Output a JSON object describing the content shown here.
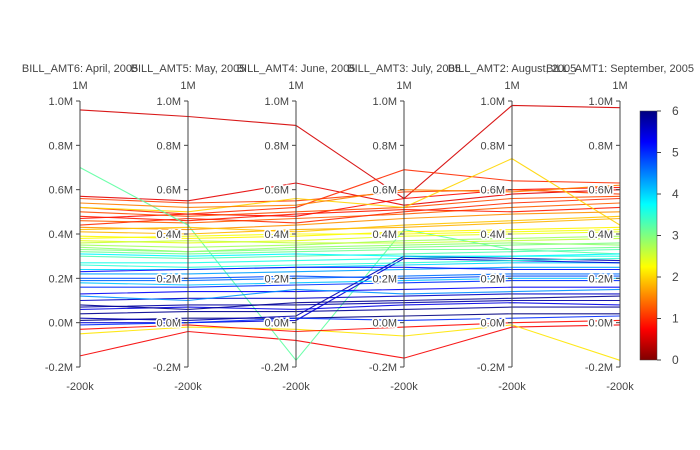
{
  "chart_data": {
    "type": "parallel-coordinates",
    "dimensions": [
      {
        "label": "BILL_AMT6: April, 2005",
        "range_top": "1M",
        "range_bottom": "-200k"
      },
      {
        "label": "BILL_AMT5: May, 2005",
        "range_top": "1M",
        "range_bottom": "-200k"
      },
      {
        "label": "BILL_AMT4: June, 2005",
        "range_top": "1M",
        "range_bottom": "-200k"
      },
      {
        "label": "BILL_AMT3: July, 2005",
        "range_top": "1M",
        "range_bottom": "-200k"
      },
      {
        "label": "BILL_AMT2: August, 2005",
        "range_top": "1M",
        "range_bottom": "-200k"
      },
      {
        "label": "BILL_AMT1: September, 2005",
        "range_top": "1M",
        "range_bottom": "-200k"
      }
    ],
    "yrange": [
      -200000,
      1000000
    ],
    "ticks": [
      {
        "value": 1000000,
        "label": "1.0M"
      },
      {
        "value": 800000,
        "label": "0.8M"
      },
      {
        "value": 600000,
        "label": "0.6M"
      },
      {
        "value": 400000,
        "label": "0.4M"
      },
      {
        "value": 200000,
        "label": "0.2M"
      },
      {
        "value": 0,
        "label": "0.0M"
      },
      {
        "value": -200000,
        "label": "-0.2M"
      }
    ],
    "colorscale": {
      "name": "Jet (reversed)",
      "range": [
        0,
        6
      ],
      "ticks": [
        "0",
        "1",
        "2",
        "3",
        "4",
        "5",
        "6"
      ],
      "stops": [
        "#800000",
        "#ff0000",
        "#ff8000",
        "#ffff00",
        "#80ff80",
        "#00ffff",
        "#0080ff",
        "#0000ff",
        "#000080"
      ]
    },
    "series": [
      {
        "color_value": 0.5,
        "values": [
          960000,
          930000,
          890000,
          560000,
          980000,
          970000
        ]
      },
      {
        "color_value": 0.6,
        "values": [
          570000,
          550000,
          630000,
          530000,
          580000,
          600000
        ]
      },
      {
        "color_value": 0.7,
        "values": [
          -150000,
          -40000,
          -80000,
          -160000,
          -20000,
          -10000
        ]
      },
      {
        "color_value": 0.8,
        "values": [
          470000,
          490000,
          480000,
          560000,
          600000,
          610000
        ]
      },
      {
        "color_value": 1.0,
        "values": [
          520000,
          490000,
          520000,
          690000,
          640000,
          630000
        ]
      },
      {
        "color_value": 1.1,
        "values": [
          560000,
          540000,
          550000,
          590000,
          600000,
          580000
        ]
      },
      {
        "color_value": 1.2,
        "values": [
          500000,
          480000,
          500000,
          520000,
          560000,
          570000
        ]
      },
      {
        "color_value": 1.3,
        "values": [
          460000,
          450000,
          470000,
          490000,
          520000,
          540000
        ]
      },
      {
        "color_value": 1.0,
        "values": [
          440000,
          470000,
          450000,
          500000,
          540000,
          560000
        ]
      },
      {
        "color_value": 0.9,
        "values": [
          480000,
          460000,
          490000,
          510000,
          500000,
          520000
        ]
      },
      {
        "color_value": 2.0,
        "values": [
          520000,
          500000,
          560000,
          520000,
          740000,
          440000
        ]
      },
      {
        "color_value": 2.1,
        "values": [
          -50000,
          -20000,
          -30000,
          -60000,
          -10000,
          -170000
        ]
      },
      {
        "color_value": 3.2,
        "values": [
          700000,
          440000,
          -170000,
          420000,
          330000,
          310000
        ]
      },
      {
        "color_value": 1.6,
        "values": [
          430000,
          420000,
          440000,
          470000,
          490000,
          500000
        ]
      },
      {
        "color_value": 1.8,
        "values": [
          410000,
          400000,
          420000,
          430000,
          450000,
          470000
        ]
      },
      {
        "color_value": 2.2,
        "values": [
          390000,
          380000,
          390000,
          410000,
          420000,
          430000
        ]
      },
      {
        "color_value": 2.4,
        "values": [
          370000,
          360000,
          370000,
          390000,
          400000,
          410000
        ]
      },
      {
        "color_value": 2.8,
        "values": [
          350000,
          340000,
          350000,
          370000,
          380000,
          390000
        ]
      },
      {
        "color_value": 3.0,
        "values": [
          330000,
          320000,
          330000,
          340000,
          350000,
          360000
        ]
      },
      {
        "color_value": 3.3,
        "values": [
          300000,
          290000,
          300000,
          310000,
          320000,
          330000
        ]
      },
      {
        "color_value": 3.6,
        "values": [
          270000,
          270000,
          280000,
          290000,
          300000,
          300000
        ]
      },
      {
        "color_value": 4.0,
        "values": [
          240000,
          240000,
          250000,
          260000,
          270000,
          270000
        ]
      },
      {
        "color_value": 4.3,
        "values": [
          220000,
          220000,
          230000,
          240000,
          250000,
          250000
        ]
      },
      {
        "color_value": 4.6,
        "values": [
          190000,
          190000,
          200000,
          210000,
          220000,
          220000
        ]
      },
      {
        "color_value": 5.0,
        "values": [
          160000,
          160000,
          170000,
          180000,
          190000,
          190000
        ]
      },
      {
        "color_value": 5.3,
        "values": [
          130000,
          140000,
          140000,
          150000,
          160000,
          160000
        ]
      },
      {
        "color_value": 5.6,
        "values": [
          100000,
          110000,
          110000,
          120000,
          130000,
          130000
        ]
      },
      {
        "color_value": 5.8,
        "values": [
          70000,
          80000,
          80000,
          90000,
          100000,
          100000
        ]
      },
      {
        "color_value": 5.9,
        "values": [
          40000,
          50000,
          50000,
          60000,
          70000,
          70000
        ]
      },
      {
        "color_value": 6.0,
        "values": [
          10000,
          20000,
          20000,
          30000,
          40000,
          40000
        ]
      },
      {
        "color_value": 5.7,
        "values": [
          20000,
          10000,
          30000,
          300000,
          290000,
          280000
        ]
      },
      {
        "color_value": 5.5,
        "values": [
          0,
          0,
          10000,
          290000,
          280000,
          270000
        ]
      },
      {
        "color_value": 5.2,
        "values": [
          230000,
          240000,
          250000,
          250000,
          240000,
          240000
        ]
      },
      {
        "color_value": 4.8,
        "values": [
          200000,
          200000,
          210000,
          200000,
          210000,
          210000
        ]
      },
      {
        "color_value": 3.8,
        "values": [
          310000,
          300000,
          310000,
          300000,
          300000,
          310000
        ]
      },
      {
        "color_value": 2.6,
        "values": [
          360000,
          370000,
          360000,
          360000,
          370000,
          380000
        ]
      },
      {
        "color_value": 5.0,
        "values": [
          -10000,
          0,
          20000,
          10000,
          20000,
          30000
        ]
      },
      {
        "color_value": 4.4,
        "values": [
          120000,
          100000,
          150000,
          130000,
          140000,
          150000
        ]
      },
      {
        "color_value": 3.5,
        "values": [
          260000,
          250000,
          260000,
          270000,
          280000,
          290000
        ]
      },
      {
        "color_value": 1.5,
        "values": [
          540000,
          520000,
          530000,
          600000,
          590000,
          620000
        ]
      },
      {
        "color_value": 2.9,
        "values": [
          340000,
          320000,
          340000,
          350000,
          360000,
          350000
        ]
      },
      {
        "color_value": 5.4,
        "values": [
          60000,
          70000,
          60000,
          80000,
          90000,
          80000
        ]
      },
      {
        "color_value": 3.1,
        "values": [
          320000,
          310000,
          320000,
          330000,
          330000,
          340000
        ]
      },
      {
        "color_value": 4.1,
        "values": [
          180000,
          170000,
          180000,
          190000,
          200000,
          200000
        ]
      },
      {
        "color_value": 2.3,
        "values": [
          380000,
          390000,
          400000,
          400000,
          410000,
          420000
        ]
      },
      {
        "color_value": 1.9,
        "values": [
          420000,
          430000,
          410000,
          440000,
          460000,
          480000
        ]
      },
      {
        "color_value": 0.8,
        "values": [
          -30000,
          -10000,
          -40000,
          -20000,
          0,
          10000
        ]
      },
      {
        "color_value": 5.9,
        "values": [
          80000,
          60000,
          90000,
          100000,
          110000,
          120000
        ]
      }
    ]
  }
}
